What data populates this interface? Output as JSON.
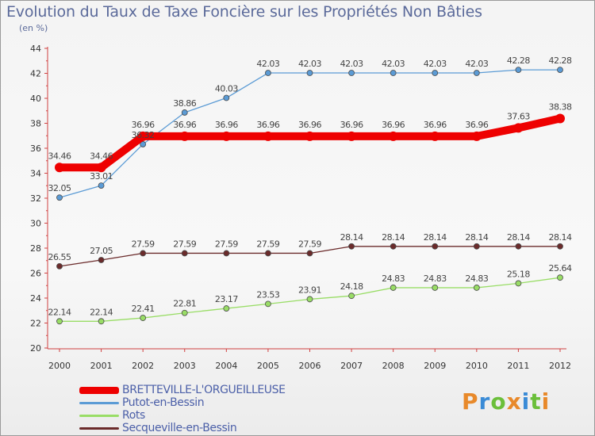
{
  "title": "Evolution du Taux de Taxe Foncière sur les Propriétés Non Bâties",
  "subtitle": "(en %)",
  "brand": {
    "text": "Proxiti",
    "colors": [
      "#e8892a",
      "#3a8bd6",
      "#6bbf3a",
      "#e8892a",
      "#3a8bd6",
      "#6bbf3a",
      "#e8892a"
    ]
  },
  "chart_data": {
    "type": "line",
    "title": "Evolution du Taux de Taxe Foncière sur les Propriétés Non Bâties",
    "ylabel": "(en %)",
    "xlabel": "",
    "ylim": [
      20,
      44
    ],
    "yticks": [
      20,
      22,
      24,
      26,
      28,
      30,
      32,
      34,
      36,
      38,
      40,
      42,
      44
    ],
    "x": [
      "2000",
      "2001",
      "2002",
      "2003",
      "2004",
      "2005",
      "2006",
      "2007",
      "2008",
      "2009",
      "2010",
      "2011",
      "2012"
    ],
    "grid": false,
    "legend_position": "bottom-left",
    "series": [
      {
        "name": "BRETTEVILLE-L'ORGUEILLEUSE",
        "color": "#ee0000",
        "values": [
          34.46,
          34.46,
          36.96,
          36.96,
          36.96,
          36.96,
          36.96,
          36.96,
          36.96,
          36.96,
          36.96,
          37.63,
          38.38
        ],
        "labels": [
          "34.46",
          "34.46",
          "36.96",
          "36.96",
          "36.96",
          "36.96",
          "36.96",
          "36.96",
          "36.96",
          "36.96",
          "36.96",
          "37.63",
          "38.38"
        ]
      },
      {
        "name": "Putot-en-Bessin",
        "color": "#5b9bd5",
        "values": [
          32.05,
          33.01,
          36.32,
          38.86,
          40.03,
          42.03,
          42.03,
          42.03,
          42.03,
          42.03,
          42.03,
          42.28,
          42.28
        ],
        "labels": [
          "32.05",
          "33.01",
          "36.32",
          "38.86",
          "40.03",
          "42.03",
          "42.03",
          "42.03",
          "42.03",
          "42.03",
          "42.03",
          "42.28",
          "42.28"
        ]
      },
      {
        "name": "Rots",
        "color": "#99dd66",
        "values": [
          22.14,
          22.14,
          22.41,
          22.81,
          23.17,
          23.53,
          23.91,
          24.18,
          24.83,
          24.83,
          24.83,
          25.18,
          25.64
        ],
        "labels": [
          "22.14",
          "22.14",
          "22.41",
          "22.81",
          "23.17",
          "23.53",
          "23.91",
          "24.18",
          "24.83",
          "24.83",
          "24.83",
          "25.18",
          "25.64"
        ]
      },
      {
        "name": "Secqueville-en-Bessin",
        "color": "#6b2b2b",
        "values": [
          26.55,
          27.05,
          27.59,
          27.59,
          27.59,
          27.59,
          27.59,
          28.14,
          28.14,
          28.14,
          28.14,
          28.14,
          28.14
        ],
        "labels": [
          "26.55",
          "27.05",
          "27.59",
          "27.59",
          "27.59",
          "27.59",
          "27.59",
          "28.14",
          "28.14",
          "28.14",
          "28.14",
          "28.14",
          "28.14"
        ]
      }
    ]
  }
}
